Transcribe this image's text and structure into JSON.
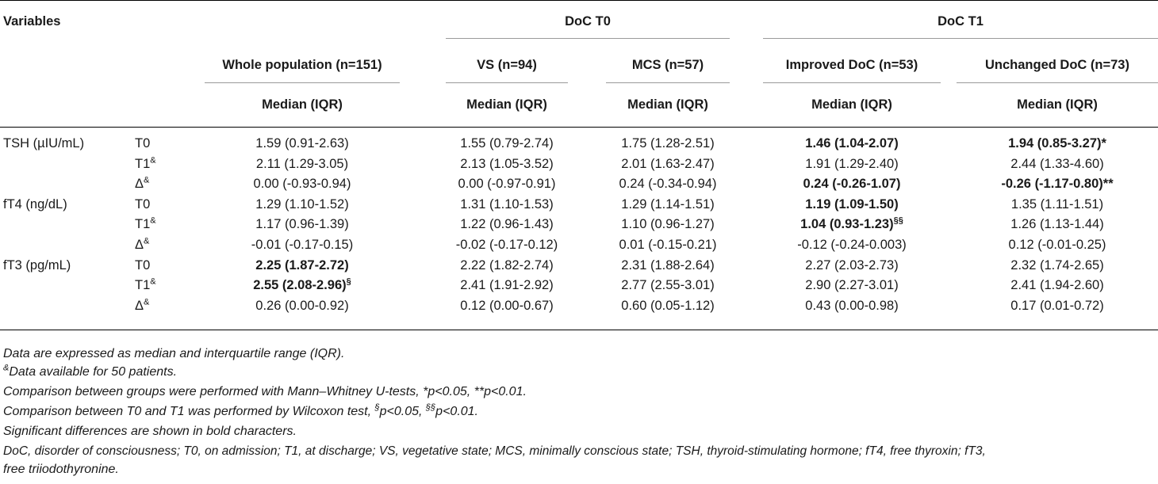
{
  "header": {
    "variables": "Variables",
    "doc_t0": "DoC T0",
    "doc_t1": "DoC T1",
    "groups": [
      "Whole population (n=151)",
      "VS (n=94)",
      "MCS (n=57)",
      "Improved DoC (n=53)",
      "Unchanged DoC (n=73)"
    ],
    "stat": "Median (IQR)"
  },
  "rows": [
    {
      "variable": "TSH (µIU/mL)",
      "time": "T0",
      "time_sup": "",
      "values": [
        "1.59 (0.91-2.63)",
        "1.55 (0.79-2.74)",
        "1.75 (1.28-2.51)",
        "1.46 (1.04-2.07)",
        "1.94 (0.85-3.27)*"
      ],
      "value_sups": [
        "",
        "",
        "",
        "",
        ""
      ],
      "bold": [
        false,
        false,
        false,
        true,
        true
      ]
    },
    {
      "variable": "",
      "time": "T1",
      "time_sup": "&",
      "values": [
        "2.11 (1.29-3.05)",
        "2.13 (1.05-3.52)",
        "2.01 (1.63-2.47)",
        "1.91 (1.29-2.40)",
        "2.44 (1.33-4.60)"
      ],
      "value_sups": [
        "",
        "",
        "",
        "",
        ""
      ],
      "bold": [
        false,
        false,
        false,
        false,
        false
      ]
    },
    {
      "variable": "",
      "time": "Δ",
      "time_sup": "&",
      "values": [
        "0.00 (-0.93-0.94)",
        "0.00 (-0.97-0.91)",
        "0.24 (-0.34-0.94)",
        "0.24 (-0.26-1.07)",
        "-0.26 (-1.17-0.80)**"
      ],
      "value_sups": [
        "",
        "",
        "",
        "",
        ""
      ],
      "bold": [
        false,
        false,
        false,
        true,
        true
      ]
    },
    {
      "variable": "fT4 (ng/dL)",
      "time": "T0",
      "time_sup": "",
      "values": [
        "1.29 (1.10-1.52)",
        "1.31 (1.10-1.53)",
        "1.29 (1.14-1.51)",
        "1.19 (1.09-1.50)",
        "1.35 (1.11-1.51)"
      ],
      "value_sups": [
        "",
        "",
        "",
        "",
        ""
      ],
      "bold": [
        false,
        false,
        false,
        true,
        false
      ]
    },
    {
      "variable": "",
      "time": "T1",
      "time_sup": "&",
      "values": [
        "1.17 (0.96-1.39)",
        "1.22 (0.96-1.43)",
        "1.10 (0.96-1.27)",
        "1.04 (0.93-1.23)",
        "1.26 (1.13-1.44)"
      ],
      "value_sups": [
        "",
        "",
        "",
        "§§",
        ""
      ],
      "bold": [
        false,
        false,
        false,
        true,
        false
      ]
    },
    {
      "variable": "",
      "time": "Δ",
      "time_sup": "&",
      "values": [
        "-0.01 (-0.17-0.15)",
        "-0.02 (-0.17-0.12)",
        "0.01 (-0.15-0.21)",
        "-0.12 (-0.24-0.003)",
        "0.12 (-0.01-0.25)"
      ],
      "value_sups": [
        "",
        "",
        "",
        "",
        ""
      ],
      "bold": [
        false,
        false,
        false,
        false,
        false
      ]
    },
    {
      "variable": "fT3 (pg/mL)",
      "time": "T0",
      "time_sup": "",
      "values": [
        "2.25 (1.87-2.72)",
        "2.22 (1.82-2.74)",
        "2.31 (1.88-2.64)",
        "2.27 (2.03-2.73)",
        "2.32 (1.74-2.65)"
      ],
      "value_sups": [
        "",
        "",
        "",
        "",
        ""
      ],
      "bold": [
        true,
        false,
        false,
        false,
        false
      ]
    },
    {
      "variable": "",
      "time": "T1",
      "time_sup": "&",
      "values": [
        "2.55 (2.08-2.96)",
        "2.41 (1.91-2.92)",
        "2.77 (2.55-3.01)",
        "2.90 (2.27-3.01)",
        "2.41 (1.94-2.60)"
      ],
      "value_sups": [
        "§",
        "",
        "",
        "",
        ""
      ],
      "bold": [
        true,
        false,
        false,
        false,
        false
      ]
    },
    {
      "variable": "",
      "time": "Δ",
      "time_sup": "&",
      "values": [
        "0.26 (0.00-0.92)",
        "0.12 (0.00-0.67)",
        "0.60 (0.05-1.12)",
        "0.43 (0.00-0.98)",
        "0.17 (0.01-0.72)"
      ],
      "value_sups": [
        "",
        "",
        "",
        "",
        ""
      ],
      "bold": [
        false,
        false,
        false,
        false,
        false
      ]
    }
  ],
  "footnotes": {
    "f1": "Data are expressed as median and interquartile range (IQR).",
    "f2_sup": "&",
    "f2": "Data available for 50 patients.",
    "f3": "Comparison between groups were performed with Mann–Whitney U-tests, *p<0.05, **p<0.01.",
    "f4_pre": "Comparison between T0 and T1 was performed by Wilcoxon test, ",
    "f4_sup1": "§",
    "f4_mid": "p<0.05, ",
    "f4_sup2": "§§",
    "f4_post": "p<0.01.",
    "f5": "Significant differences are shown in bold characters.",
    "f6": "DoC, disorder of consciousness; T0, on admission; T1, at discharge; VS, vegetative state; MCS, minimally conscious state; TSH, thyroid-stimulating hormone; fT4, free thyroxin; fT3,",
    "f7": "free triiodothyronine."
  }
}
